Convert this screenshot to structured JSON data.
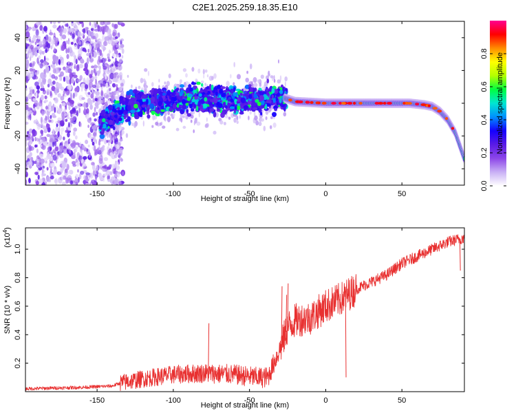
{
  "chart_data": [
    {
      "type": "heatmap",
      "title": "C2E1.2025.259.18.35.E10",
      "xlabel": "Height of straight line (km)",
      "ylabel": "Frequency (Hz)",
      "xlim": [
        -197,
        91
      ],
      "ylim": [
        -50,
        50
      ],
      "xticks": [
        -150,
        -100,
        -50,
        0,
        50
      ],
      "xtick_labels": [
        "-150",
        "-100",
        "-50",
        "0",
        "50"
      ],
      "yticks": [
        -40,
        -20,
        0,
        20,
        40
      ],
      "ytick_labels": [
        "-40",
        "-20",
        "0",
        "20",
        "40"
      ],
      "trace": {
        "x": [
          -145,
          -135,
          -120,
          -100,
          -80,
          -60,
          -40,
          -30,
          -20,
          0,
          20,
          40,
          55,
          65,
          70,
          75,
          80,
          85,
          88,
          91
        ],
        "y": [
          -12,
          -4,
          0,
          2,
          3,
          2,
          3,
          4,
          1,
          0,
          0,
          0,
          0,
          -1,
          -2,
          -5,
          -10,
          -18,
          -26,
          -34
        ]
      },
      "noise_region": [
        -197,
        -133
      ],
      "scattered_region": [
        -148,
        -26
      ],
      "colorbar": {
        "label": "Normalized spectral amplitude",
        "ticks": [
          0.0,
          0.2,
          0.4,
          0.6,
          0.8
        ],
        "tick_labels": [
          "0.0",
          "0.2",
          "0.4",
          "0.6",
          "0.8"
        ],
        "range": [
          0,
          1
        ],
        "colors": [
          "#ffffff",
          "#c9b0f5",
          "#8c46e8",
          "#5a1be6",
          "#1400ff",
          "#0090ff",
          "#00e6d2",
          "#00ff40",
          "#b4ff00",
          "#ffff00",
          "#ff8c00",
          "#ff0000",
          "#ff0090"
        ]
      }
    },
    {
      "type": "line",
      "title": "",
      "xlabel": "Height of straight line (km)",
      "ylabel": "SNR (10 * v/v)",
      "exponent_label": "(x10",
      "exponent_power": "4",
      "exponent_close": ")",
      "xlim": [
        -197,
        91
      ],
      "ylim": [
        0,
        1.15
      ],
      "xticks": [
        -150,
        -100,
        -50,
        0,
        50
      ],
      "xtick_labels": [
        "-150",
        "-100",
        "-50",
        "0",
        "50"
      ],
      "yticks": [
        0.2,
        0.4,
        0.6,
        0.8,
        1.0
      ],
      "ytick_labels": [
        "0.2",
        "0.4",
        "0.6",
        "0.8",
        "1.0"
      ],
      "color": "#e83030",
      "series": [
        {
          "name": "SNR",
          "x": [
            -197,
            -180,
            -160,
            -140,
            -135,
            -120,
            -100,
            -80,
            -60,
            -45,
            -38,
            -30,
            -25,
            -20,
            -10,
            0,
            10,
            20,
            30,
            40,
            45,
            50,
            60,
            70,
            80,
            91
          ],
          "y": [
            0.02,
            0.025,
            0.03,
            0.04,
            0.06,
            0.09,
            0.12,
            0.13,
            0.12,
            0.1,
            0.1,
            0.3,
            0.45,
            0.5,
            0.52,
            0.6,
            0.65,
            0.72,
            0.77,
            0.82,
            0.86,
            0.9,
            0.95,
            1.0,
            1.05,
            1.08
          ]
        }
      ],
      "spikes": [
        {
          "x": -77,
          "y": 0.48
        },
        {
          "x": -29,
          "y": 0.74
        },
        {
          "x": -26,
          "y": 0.68
        },
        {
          "x": -25,
          "y": 0.76
        },
        {
          "x": 13,
          "y": 0.1
        },
        {
          "x": 88,
          "y": 0.85
        }
      ]
    }
  ]
}
